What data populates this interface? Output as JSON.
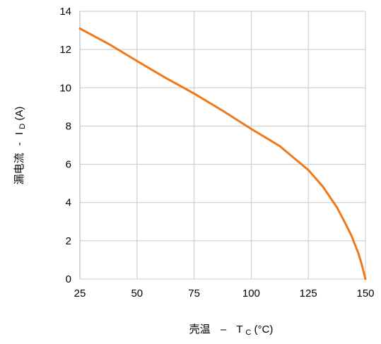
{
  "chart_data": {
    "type": "line",
    "title": "",
    "xlabel": {
      "text": "壳温",
      "dash": "–",
      "symbol": "T",
      "subscript": "C",
      "unit": "(°C)"
    },
    "ylabel": {
      "text": "漏电流",
      "dash": "-",
      "symbol": "I",
      "subscript": "D",
      "unit": "(A)"
    },
    "xlim": [
      25,
      150
    ],
    "ylim": [
      0,
      14
    ],
    "xticks": [
      25,
      50,
      75,
      100,
      125,
      150
    ],
    "yticks": [
      0,
      2,
      4,
      6,
      8,
      10,
      12,
      14
    ],
    "grid": true,
    "legend": "none",
    "series": [
      {
        "color": "#f07818",
        "x": [
          25,
          37.5,
          50,
          62.5,
          75,
          87.5,
          100,
          112.5,
          125,
          131.25,
          137.5,
          140.6,
          143.75,
          146.9,
          148.4,
          150
        ],
        "y": [
          13.1,
          12.3,
          11.4,
          10.52,
          9.7,
          8.8,
          7.85,
          6.95,
          5.7,
          4.85,
          3.75,
          3.05,
          2.3,
          1.35,
          0.75,
          0
        ]
      }
    ]
  }
}
